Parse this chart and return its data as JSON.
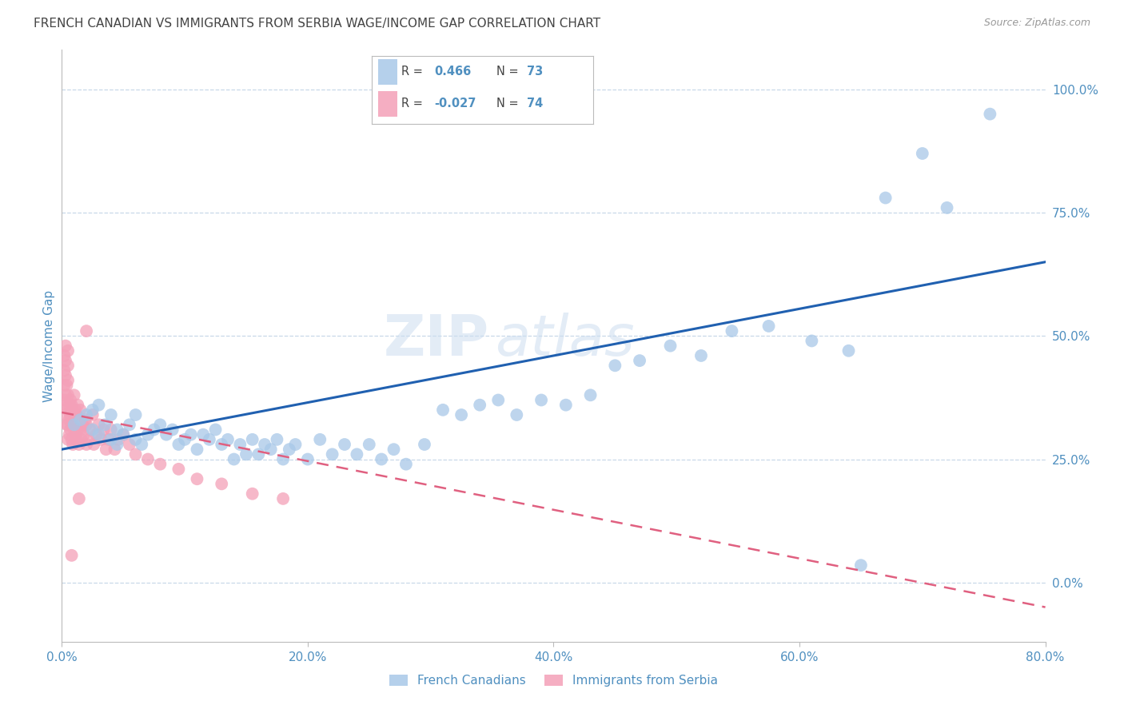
{
  "title": "FRENCH CANADIAN VS IMMIGRANTS FROM SERBIA WAGE/INCOME GAP CORRELATION CHART",
  "source": "Source: ZipAtlas.com",
  "xlabel_blue": "French Canadians",
  "xlabel_pink": "Immigrants from Serbia",
  "ylabel": "Wage/Income Gap",
  "watermark_zip": "ZIP",
  "watermark_atlas": "atlas",
  "legend_blue_r_val": "0.466",
  "legend_blue_n_val": "73",
  "legend_pink_r_val": "-0.027",
  "legend_pink_n_val": "74",
  "blue_color": "#a8c8e8",
  "pink_color": "#f4a0b8",
  "blue_line_color": "#2060b0",
  "pink_line_color": "#e06080",
  "axis_label_color": "#5090c0",
  "grid_color": "#c8d8e8",
  "background_color": "#ffffff",
  "xlim": [
    0.0,
    0.8
  ],
  "ylim": [
    -0.12,
    1.08
  ],
  "xticks": [
    0.0,
    0.2,
    0.4,
    0.6,
    0.8
  ],
  "yticks_right": [
    0.0,
    0.25,
    0.5,
    0.75,
    1.0
  ],
  "blue_line_x": [
    0.0,
    0.8
  ],
  "blue_line_y": [
    0.27,
    0.65
  ],
  "pink_line_x": [
    0.0,
    0.8
  ],
  "pink_line_y": [
    0.345,
    -0.05
  ],
  "blue_scatter_x": [
    0.01,
    0.015,
    0.02,
    0.025,
    0.025,
    0.03,
    0.03,
    0.035,
    0.04,
    0.04,
    0.045,
    0.045,
    0.05,
    0.055,
    0.06,
    0.06,
    0.065,
    0.07,
    0.075,
    0.08,
    0.085,
    0.09,
    0.095,
    0.1,
    0.105,
    0.11,
    0.115,
    0.12,
    0.125,
    0.13,
    0.135,
    0.14,
    0.145,
    0.15,
    0.155,
    0.16,
    0.165,
    0.17,
    0.175,
    0.18,
    0.185,
    0.19,
    0.2,
    0.21,
    0.22,
    0.23,
    0.24,
    0.25,
    0.26,
    0.27,
    0.28,
    0.295,
    0.31,
    0.325,
    0.34,
    0.355,
    0.37,
    0.39,
    0.41,
    0.43,
    0.45,
    0.47,
    0.495,
    0.52,
    0.545,
    0.575,
    0.61,
    0.64,
    0.67,
    0.7,
    0.72,
    0.755,
    0.65
  ],
  "blue_scatter_y": [
    0.32,
    0.33,
    0.34,
    0.31,
    0.35,
    0.3,
    0.36,
    0.32,
    0.29,
    0.34,
    0.28,
    0.31,
    0.3,
    0.32,
    0.29,
    0.34,
    0.28,
    0.3,
    0.31,
    0.32,
    0.3,
    0.31,
    0.28,
    0.29,
    0.3,
    0.27,
    0.3,
    0.29,
    0.31,
    0.28,
    0.29,
    0.25,
    0.28,
    0.26,
    0.29,
    0.26,
    0.28,
    0.27,
    0.29,
    0.25,
    0.27,
    0.28,
    0.25,
    0.29,
    0.26,
    0.28,
    0.26,
    0.28,
    0.25,
    0.27,
    0.24,
    0.28,
    0.35,
    0.34,
    0.36,
    0.37,
    0.34,
    0.37,
    0.36,
    0.38,
    0.44,
    0.45,
    0.48,
    0.46,
    0.51,
    0.52,
    0.49,
    0.47,
    0.78,
    0.87,
    0.76,
    0.95,
    0.035
  ],
  "pink_scatter_x": [
    0.002,
    0.002,
    0.002,
    0.002,
    0.003,
    0.003,
    0.003,
    0.003,
    0.003,
    0.004,
    0.004,
    0.004,
    0.005,
    0.005,
    0.005,
    0.005,
    0.005,
    0.005,
    0.005,
    0.006,
    0.006,
    0.006,
    0.007,
    0.007,
    0.007,
    0.008,
    0.008,
    0.008,
    0.009,
    0.009,
    0.01,
    0.01,
    0.01,
    0.011,
    0.011,
    0.012,
    0.012,
    0.013,
    0.013,
    0.014,
    0.015,
    0.015,
    0.016,
    0.017,
    0.018,
    0.019,
    0.02,
    0.02,
    0.022,
    0.023,
    0.025,
    0.026,
    0.028,
    0.03,
    0.032,
    0.034,
    0.036,
    0.038,
    0.04,
    0.043,
    0.046,
    0.05,
    0.055,
    0.06,
    0.07,
    0.08,
    0.095,
    0.11,
    0.13,
    0.155,
    0.18,
    0.02,
    0.014,
    0.008
  ],
  "pink_scatter_y": [
    0.37,
    0.4,
    0.43,
    0.46,
    0.34,
    0.38,
    0.42,
    0.45,
    0.48,
    0.32,
    0.36,
    0.4,
    0.29,
    0.32,
    0.35,
    0.38,
    0.41,
    0.44,
    0.47,
    0.3,
    0.33,
    0.36,
    0.31,
    0.34,
    0.37,
    0.29,
    0.32,
    0.36,
    0.28,
    0.32,
    0.31,
    0.34,
    0.38,
    0.3,
    0.35,
    0.29,
    0.34,
    0.31,
    0.36,
    0.28,
    0.31,
    0.35,
    0.29,
    0.32,
    0.3,
    0.33,
    0.28,
    0.32,
    0.29,
    0.31,
    0.34,
    0.28,
    0.3,
    0.32,
    0.29,
    0.31,
    0.27,
    0.29,
    0.31,
    0.27,
    0.29,
    0.3,
    0.28,
    0.26,
    0.25,
    0.24,
    0.23,
    0.21,
    0.2,
    0.18,
    0.17,
    0.51,
    0.17,
    0.055
  ]
}
